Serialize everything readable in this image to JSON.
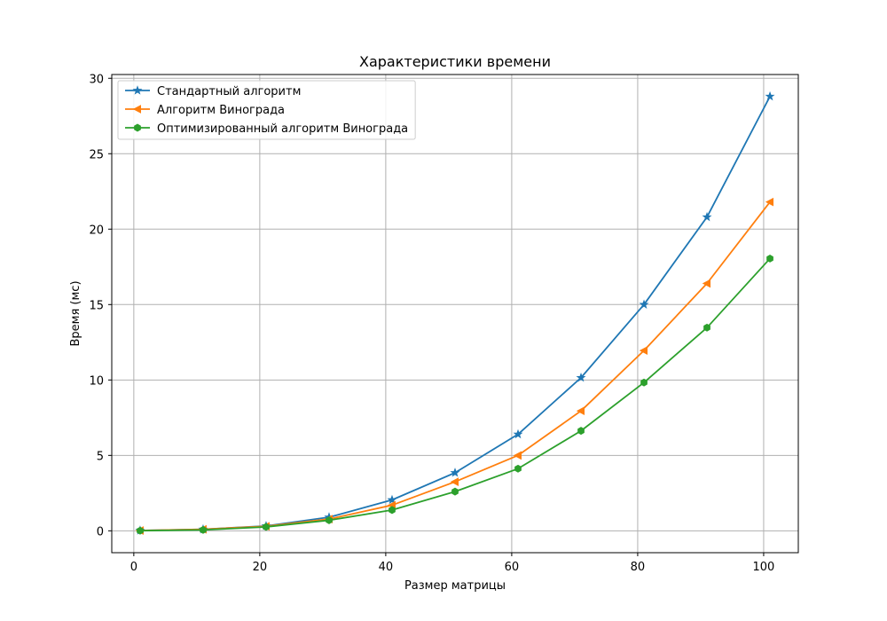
{
  "chart_data": {
    "type": "line",
    "title": "Характеристики времени",
    "xlabel": "Размер матрицы",
    "ylabel": "Время (мс)",
    "xlim": [
      -3.5,
      105.5
    ],
    "ylim": [
      -1.45,
      30.25
    ],
    "xticks": [
      0,
      20,
      40,
      60,
      80,
      100
    ],
    "yticks": [
      0,
      5,
      10,
      15,
      20,
      25,
      30
    ],
    "grid": true,
    "legend_position": "upper left",
    "x": [
      1,
      11,
      21,
      31,
      41,
      51,
      61,
      71,
      81,
      91,
      101
    ],
    "series": [
      {
        "name": "Стандартный алгоритм",
        "color": "#1f77b4",
        "marker": "star",
        "values": [
          0.02,
          0.1,
          0.32,
          0.9,
          2.05,
          3.85,
          6.4,
          10.15,
          15.0,
          20.8,
          28.8
        ]
      },
      {
        "name": "Алгоритм Винограда",
        "color": "#ff7f0e",
        "marker": "triangle-left",
        "values": [
          0.02,
          0.1,
          0.3,
          0.78,
          1.7,
          3.25,
          5.0,
          7.95,
          11.95,
          16.4,
          21.8
        ]
      },
      {
        "name": "Оптимизированный алгоритм Винограда",
        "color": "#2ca02c",
        "marker": "hexagon",
        "values": [
          0.01,
          0.06,
          0.26,
          0.7,
          1.38,
          2.6,
          4.12,
          6.63,
          9.83,
          13.47,
          18.05
        ]
      }
    ]
  }
}
